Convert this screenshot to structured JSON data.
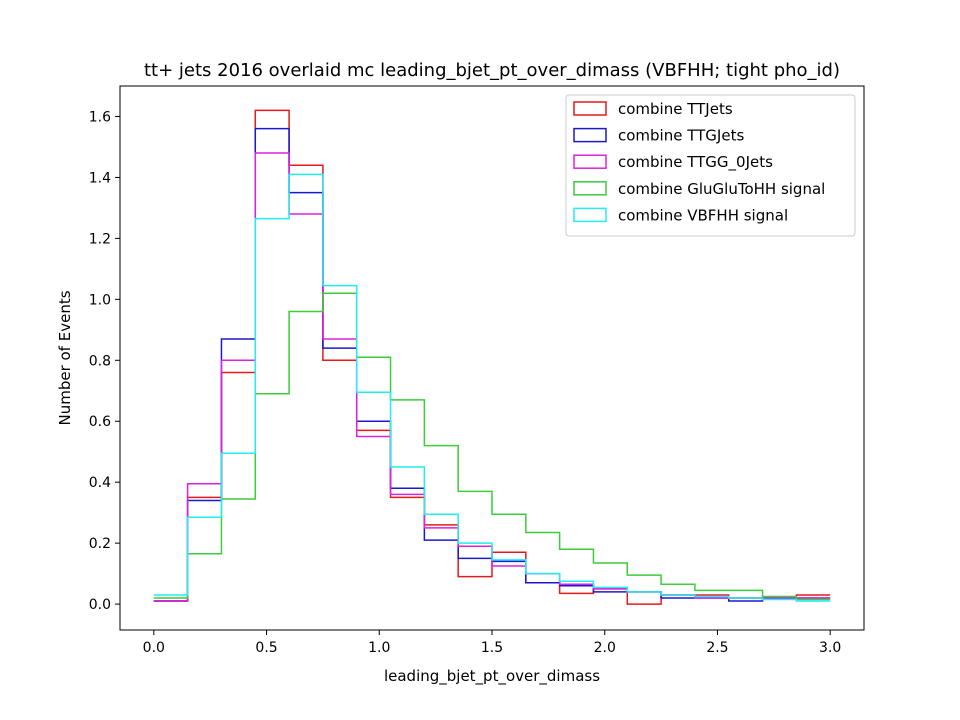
{
  "chart_data": {
    "type": "step-histogram",
    "title": "tt+ jets 2016 overlaid mc leading_bjet_pt_over_dimass (VBFHH; tight pho_id)",
    "xlabel": "leading_bjet_pt_over_dimass",
    "ylabel": "Number of Events",
    "xlim": [
      -0.15,
      3.15
    ],
    "ylim": [
      -0.085,
      1.7
    ],
    "xticks": [
      0.0,
      0.5,
      1.0,
      1.5,
      2.0,
      2.5,
      3.0
    ],
    "xtick_labels": [
      "0.0",
      "0.5",
      "1.0",
      "1.5",
      "2.0",
      "2.5",
      "3.0"
    ],
    "yticks": [
      0.0,
      0.2,
      0.4,
      0.6,
      0.8,
      1.0,
      1.2,
      1.4,
      1.6
    ],
    "ytick_labels": [
      "0.0",
      "0.2",
      "0.4",
      "0.6",
      "0.8",
      "1.0",
      "1.2",
      "1.4",
      "1.6"
    ],
    "legend_position": "top-right",
    "bin_edges": [
      0.0,
      0.15,
      0.3,
      0.45,
      0.6,
      0.75,
      0.9,
      1.05,
      1.2,
      1.35,
      1.5,
      1.65,
      1.8,
      1.95,
      2.1,
      2.25,
      2.4,
      2.55,
      2.7,
      2.85,
      3.0
    ],
    "series": [
      {
        "name": "combine TTJets",
        "color": "#e41a1c",
        "values": [
          0.01,
          0.35,
          0.76,
          1.62,
          1.44,
          0.8,
          0.57,
          0.35,
          0.26,
          0.09,
          0.17,
          0.07,
          0.035,
          0.05,
          0.0,
          0.03,
          0.03,
          0.02,
          0.02,
          0.03
        ]
      },
      {
        "name": "combine TTGJets",
        "color": "#1a1acc",
        "values": [
          0.01,
          0.34,
          0.87,
          1.56,
          1.35,
          0.84,
          0.6,
          0.38,
          0.21,
          0.15,
          0.14,
          0.07,
          0.06,
          0.04,
          0.04,
          0.02,
          0.02,
          0.01,
          0.02,
          0.02
        ]
      },
      {
        "name": "combine TTGG_0Jets",
        "color": "#dd22dd",
        "values": [
          0.01,
          0.395,
          0.8,
          1.48,
          1.28,
          0.87,
          0.55,
          0.36,
          0.25,
          0.19,
          0.125,
          0.1,
          0.065,
          0.05,
          0.04,
          0.03,
          0.02,
          0.02,
          0.02,
          0.02
        ]
      },
      {
        "name": "combine GluGluToHH signal",
        "color": "#3ccc3c",
        "values": [
          0.02,
          0.165,
          0.345,
          0.69,
          0.96,
          1.02,
          0.81,
          0.67,
          0.52,
          0.37,
          0.295,
          0.235,
          0.18,
          0.135,
          0.095,
          0.065,
          0.045,
          0.045,
          0.025,
          0.015
        ]
      },
      {
        "name": "combine VBFHH signal",
        "color": "#22eeee",
        "values": [
          0.03,
          0.285,
          0.495,
          1.265,
          1.41,
          1.045,
          0.695,
          0.45,
          0.295,
          0.2,
          0.145,
          0.1,
          0.075,
          0.055,
          0.04,
          0.03,
          0.025,
          0.02,
          0.015,
          0.01
        ]
      }
    ]
  }
}
